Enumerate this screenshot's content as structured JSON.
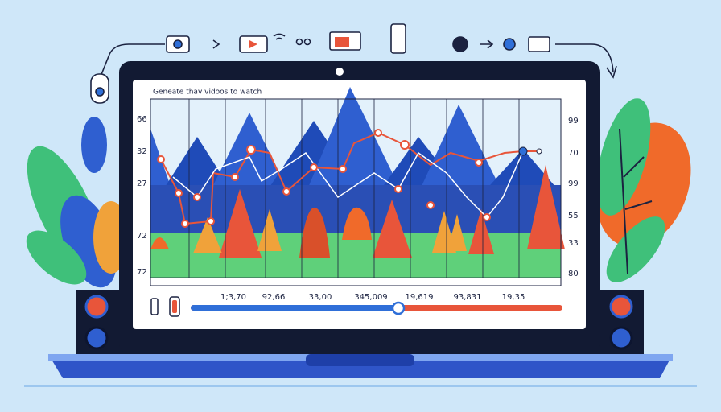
{
  "screen": {
    "title": "Geneate thav vidoos to watch",
    "left_labels": [
      "66",
      "32",
      "27",
      "72",
      "72"
    ],
    "right_labels": [
      "99",
      "70",
      "99",
      "55",
      "33",
      "80"
    ],
    "bottom_labels": [
      "1;3,70",
      "92,66",
      "33,00",
      "345,009",
      "19,619",
      "93,831",
      "19,35"
    ]
  }
}
